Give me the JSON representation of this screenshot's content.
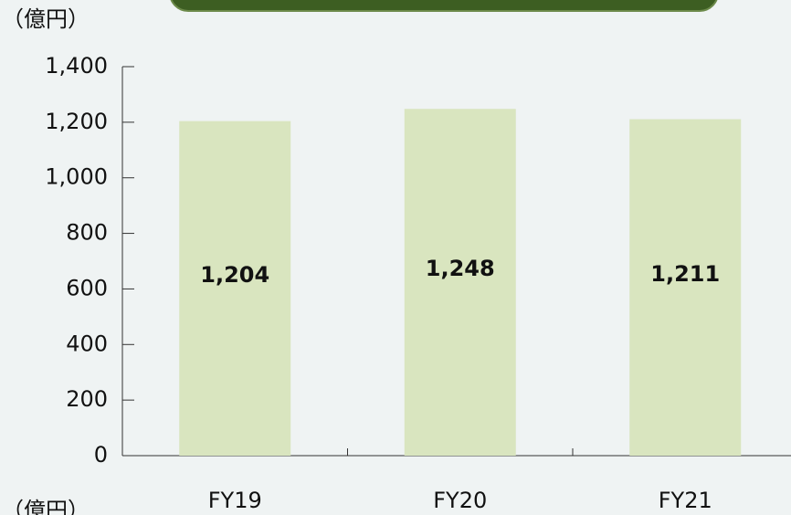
{
  "chart_data": {
    "type": "bar",
    "y_label": "（億円）",
    "categories": [
      "FY19",
      "FY20",
      "FY21"
    ],
    "values": [
      1204,
      1248,
      1211
    ],
    "value_labels": [
      "1,204",
      "1,248",
      "1,211"
    ],
    "color": "#d9e5bf",
    "ylim": [
      0,
      1400
    ],
    "yticks": [
      0,
      200,
      400,
      600,
      800,
      {
        "value": 1000,
        "label": "1,000"
      },
      {
        "value": 1200,
        "label": "1,200"
      },
      {
        "value": 1400,
        "label": "1,400"
      }
    ]
  }
}
